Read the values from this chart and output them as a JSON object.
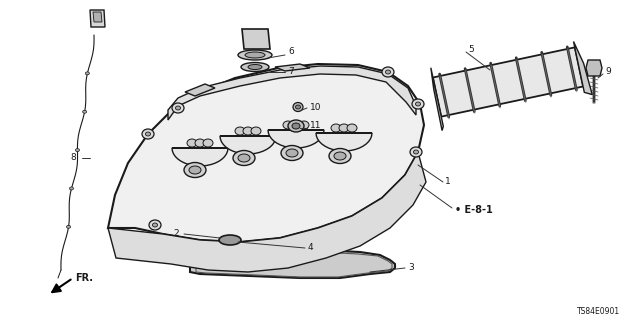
{
  "bg_color": "#ffffff",
  "lc": "#1a1a1a",
  "ref_code": "TS84E0901",
  "figsize": [
    6.4,
    3.2
  ],
  "dpi": 100
}
